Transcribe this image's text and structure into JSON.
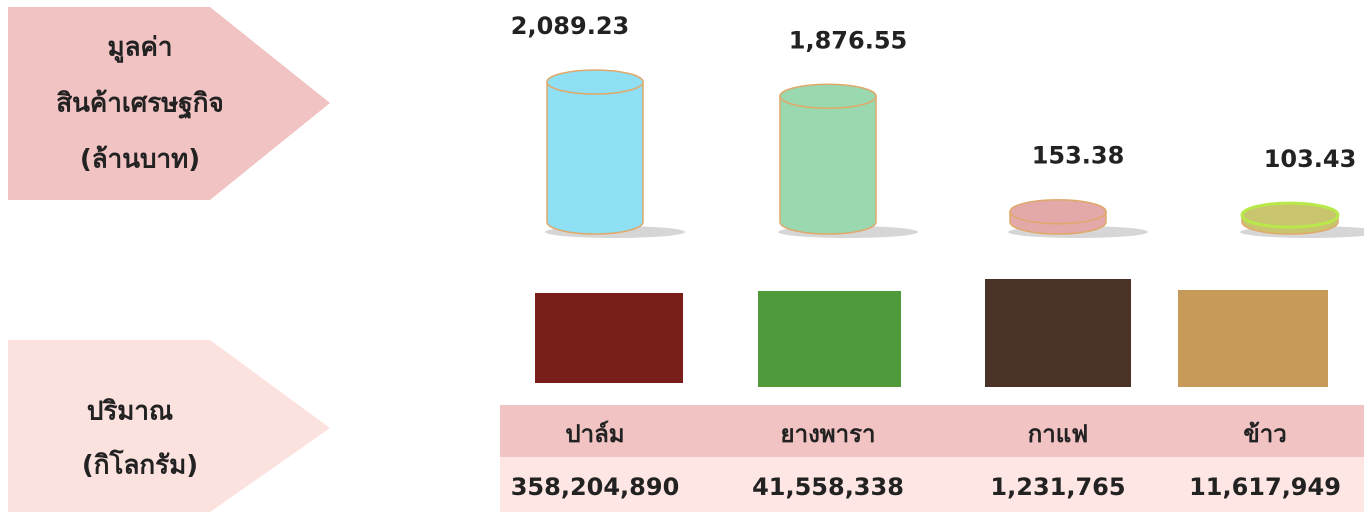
{
  "chart_data": {
    "type": "bar",
    "ylabel": [
      "มูลค่า",
      "สินค้าเศรษฐกิจ",
      "(ล้านบาท)"
    ],
    "categories": [
      "ปาล์ม",
      "ยางพารา",
      "กาแฟ",
      "ข้าว"
    ],
    "values": [
      2089.23,
      1876.55,
      153.38,
      103.43
    ],
    "value_labels": [
      "2,089.23",
      "1,876.55",
      "153.38",
      "103.43"
    ],
    "colors": [
      "#8fdff5",
      "#9ad8b0",
      "#e3a8a8",
      "#c9c56e"
    ]
  },
  "quantity": {
    "label": [
      "ปริมาณ",
      "(กิโลกรัม)"
    ],
    "values": [
      "358,204,890",
      "41,558,338",
      "1,231,765",
      "11,617,949"
    ]
  }
}
